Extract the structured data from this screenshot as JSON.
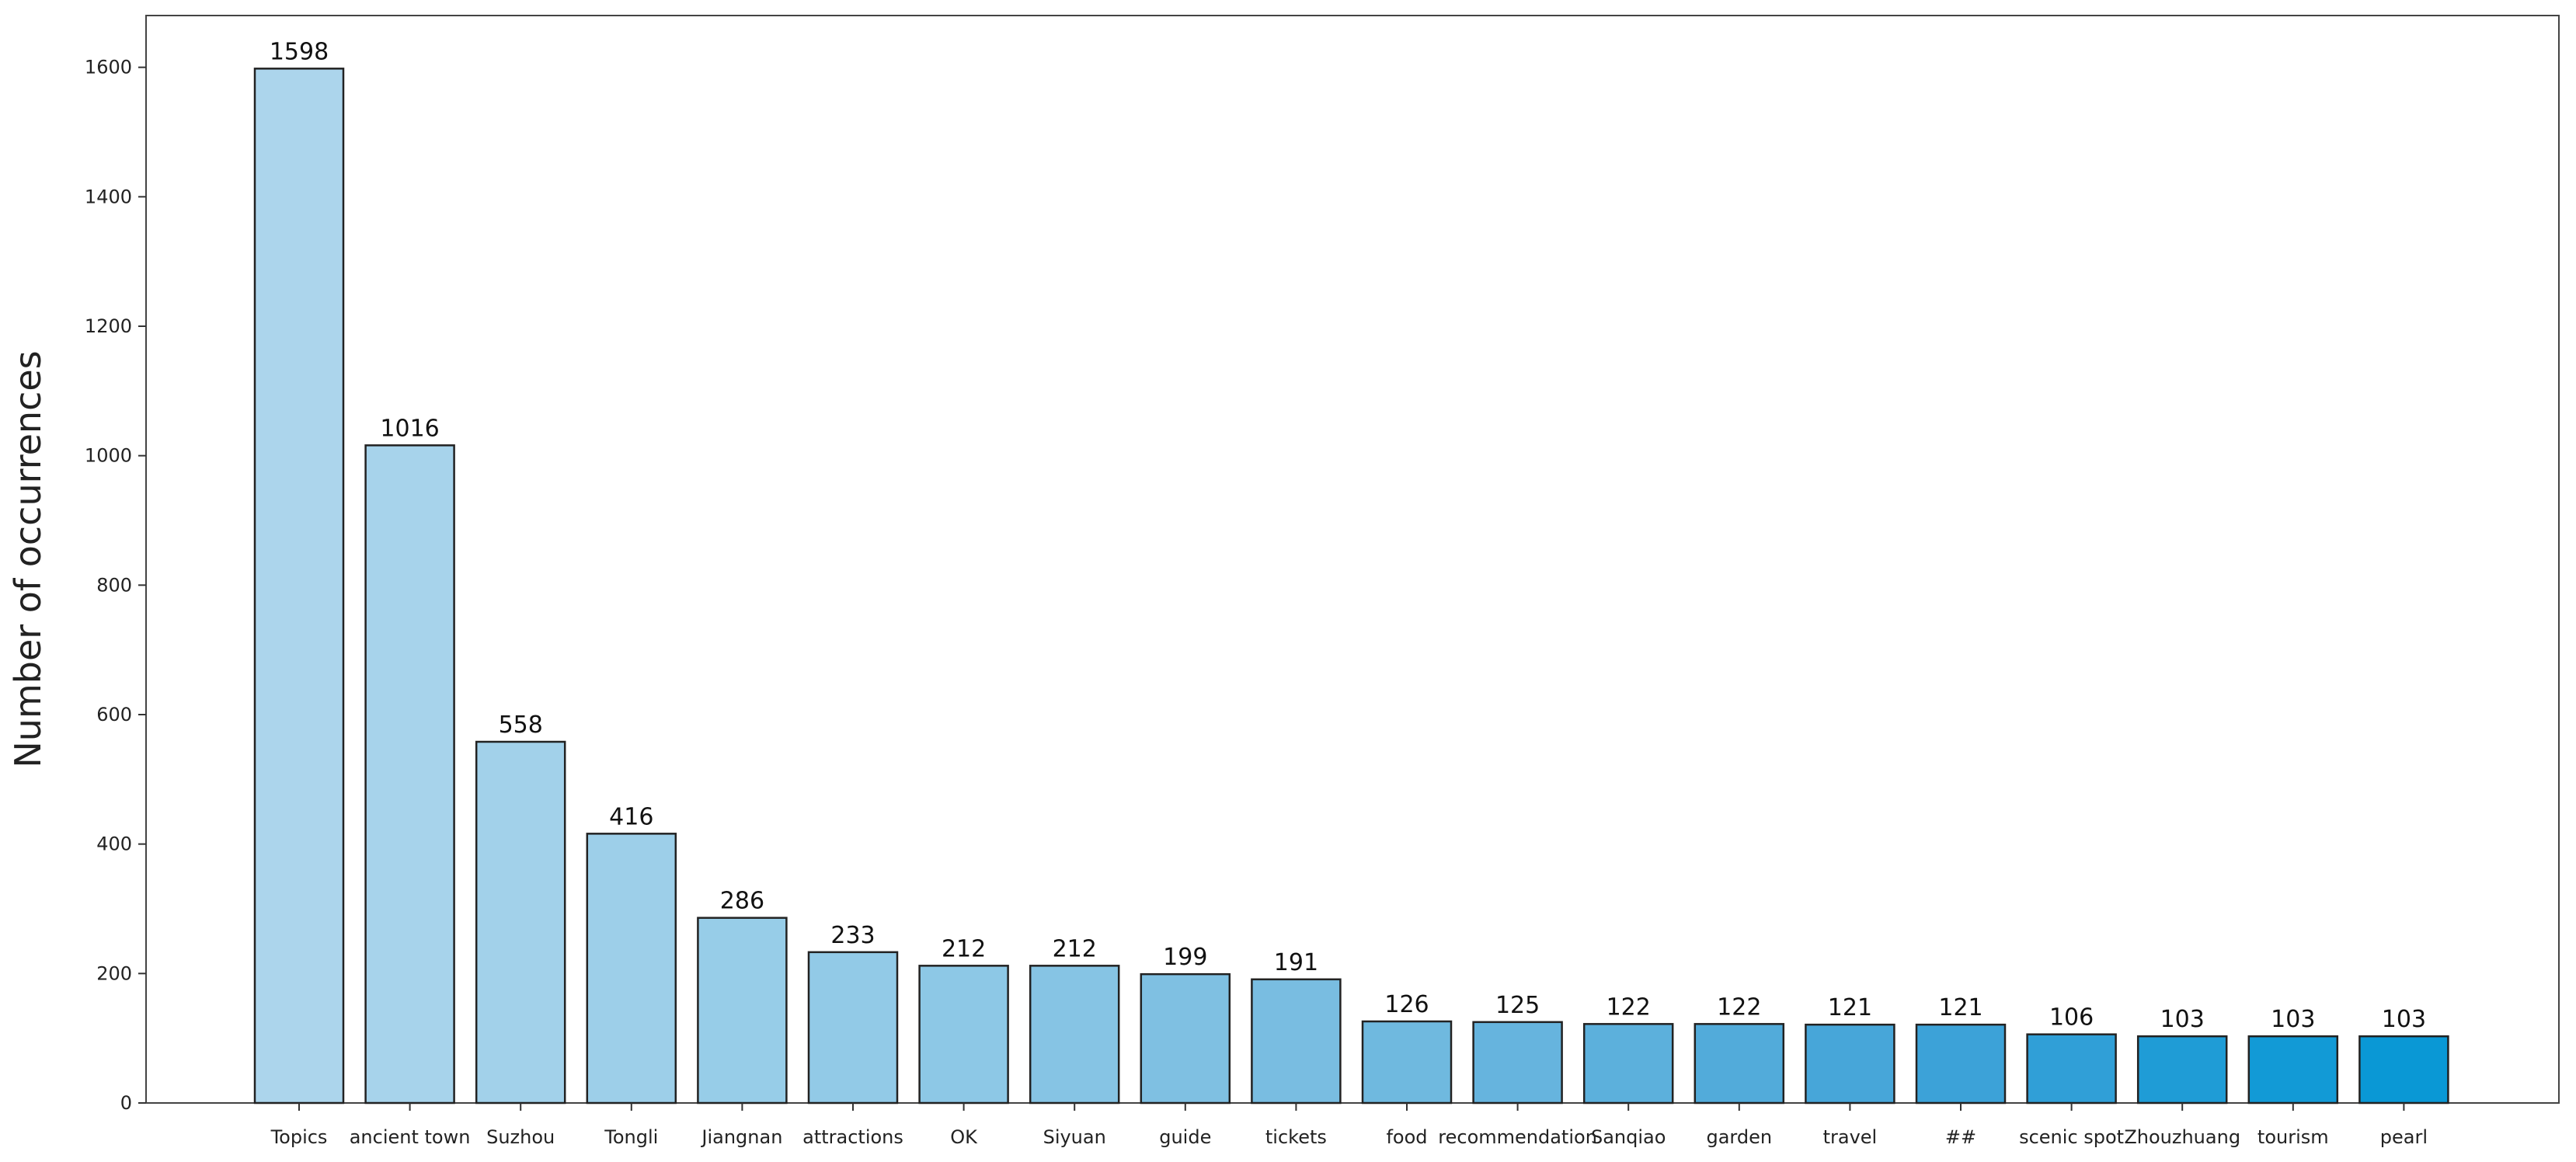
{
  "chart_data": {
    "type": "bar",
    "title": "",
    "xlabel": "",
    "ylabel": "Number of occurrences",
    "ylim": [
      0,
      1680
    ],
    "yticks": [
      0,
      200,
      400,
      600,
      800,
      1000,
      1200,
      1400,
      1600
    ],
    "grid": false,
    "legend": "none",
    "categories": [
      "Topics",
      "ancient town",
      "Suzhou",
      "Tongli",
      "Jiangnan",
      "attractions",
      "OK",
      "Siyuan",
      "guide",
      "tickets",
      "food",
      "recommendation",
      "Sanqiao",
      "garden",
      "travel",
      "##",
      "scenic spot",
      "Zhouzhuang",
      "tourism",
      "pearl"
    ],
    "values": [
      1598,
      1016,
      558,
      416,
      286,
      233,
      212,
      212,
      199,
      191,
      126,
      125,
      122,
      122,
      121,
      121,
      106,
      103,
      103,
      103
    ],
    "value_labels": [
      "1598",
      "1016",
      "558",
      "416",
      "286",
      "233",
      "212",
      "212",
      "199",
      "191",
      "126",
      "125",
      "122",
      "122",
      "121",
      "121",
      "106",
      "103",
      "103",
      "103"
    ],
    "colors": [
      "#acd5ec",
      "#a7d3eb",
      "#a2d1ea",
      "#9dcfe9",
      "#97cde8",
      "#92cae7",
      "#8dc8e6",
      "#86c4e4",
      "#7fc0e2",
      "#79bde1",
      "#6fb9df",
      "#66b4de",
      "#5cb0dc",
      "#52abda",
      "#47a6d9",
      "#3ca2d8",
      "#309fd7",
      "#1f9cd6",
      "#129ad6",
      "#0a98d5"
    ]
  }
}
